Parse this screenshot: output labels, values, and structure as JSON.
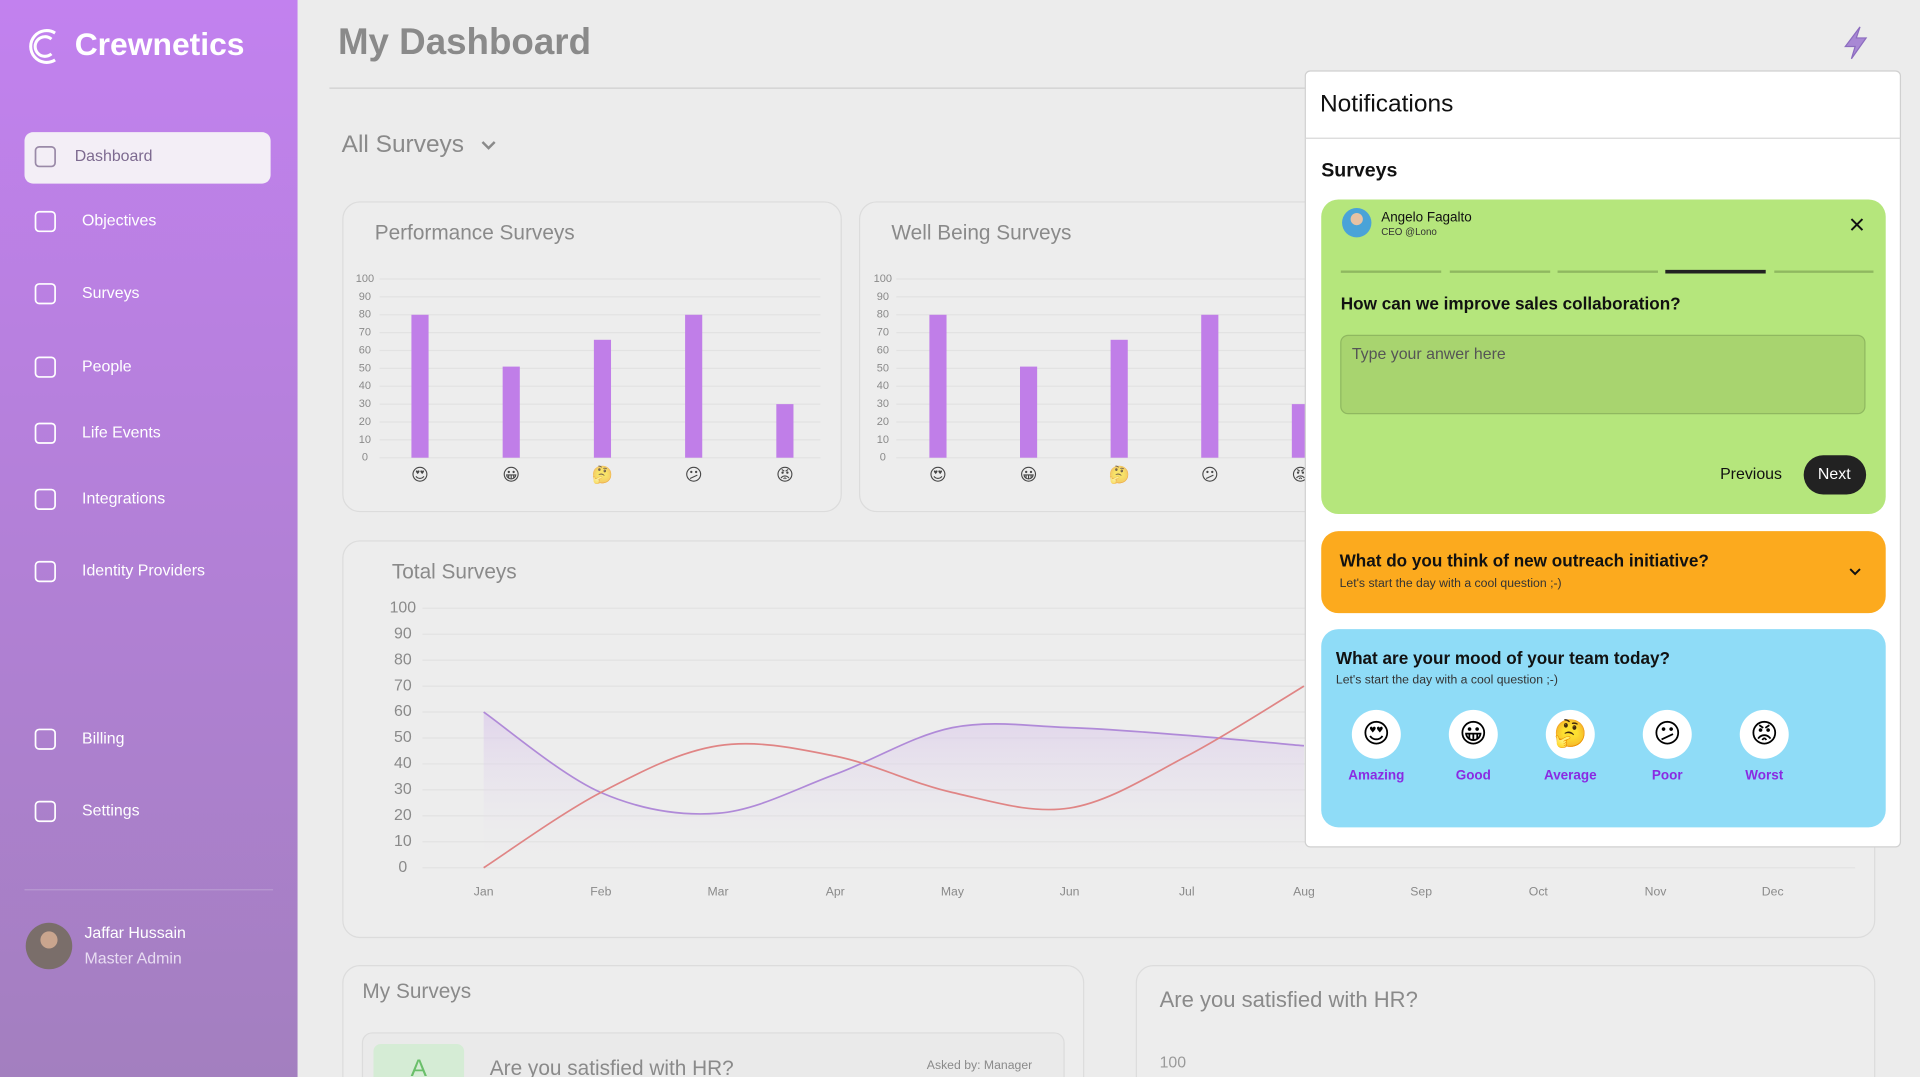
{
  "sidebar": {
    "brand": "Crewnetics",
    "nav": [
      "Dashboard",
      "Objectives",
      "Surveys",
      "People",
      "Life Events",
      "Integrations",
      "Identity Providers",
      "Billing",
      "Settings"
    ],
    "user": {
      "name": "Jaffar Hussain",
      "role": "Master Admin"
    }
  },
  "header": {
    "title": "My Dashboard",
    "filter": "All Surveys"
  },
  "chart_data": [
    {
      "type": "bar",
      "title": "Performance Surveys",
      "categories": [
        "😍",
        "😀",
        "🤔",
        "😕",
        "😡"
      ],
      "values": [
        80,
        51,
        66,
        80,
        30
      ],
      "color": "#c07ee8",
      "ylim": [
        0,
        100
      ],
      "yticks": [
        0,
        10,
        20,
        30,
        40,
        50,
        60,
        70,
        80,
        90,
        100
      ],
      "grid": true
    },
    {
      "type": "bar",
      "title": "Well Being Surveys",
      "categories": [
        "😍",
        "😀",
        "🤔",
        "😕",
        "😡"
      ],
      "values": [
        80,
        51,
        66,
        80,
        30
      ],
      "color": "#c07ee8",
      "ylim": [
        0,
        100
      ],
      "yticks": [
        0,
        10,
        20,
        30,
        40,
        50,
        60,
        70,
        80,
        90,
        100
      ],
      "grid": true
    },
    {
      "type": "line",
      "title": "Total Surveys",
      "categories": [
        "Jan",
        "Feb",
        "Mar",
        "Apr",
        "May",
        "Jun",
        "Jul",
        "Aug",
        "Sep",
        "Oct",
        "Nov",
        "Dec"
      ],
      "series": [
        {
          "color": "#b08ad8",
          "values": [
            60,
            29,
            21,
            36,
            54,
            54,
            51,
            47,
            null,
            null,
            null,
            null
          ]
        },
        {
          "color": "#e08585",
          "values": [
            0,
            29,
            47,
            43,
            29,
            23,
            43,
            70,
            null,
            null,
            null,
            null
          ]
        }
      ],
      "ylim": [
        0,
        100
      ],
      "yticks": [
        0,
        10,
        20,
        30,
        40,
        50,
        60,
        70,
        80,
        90,
        100
      ],
      "grid": true
    }
  ],
  "my_surveys": {
    "title": "My Surveys",
    "badge": "A",
    "question": "Are you satisfied with HR?",
    "asked_by": "Asked by: Manager"
  },
  "hr_card": {
    "title": "Are you satisfied with HR?",
    "tick": "100"
  },
  "notifications": {
    "title": "Notifications",
    "section": "Surveys",
    "card1": {
      "name": "Angelo Fagalto",
      "role": "CEO @Lono",
      "question": "How can we improve sales collaboration?",
      "placeholder": "Type your anwer here",
      "previous": "Previous",
      "next": "Next"
    },
    "card2": {
      "question": "What do you think of new outreach initiative?",
      "sub": "Let's start the day with a cool question ;-)"
    },
    "card3": {
      "question": "What are your mood of your team today?",
      "sub": "Let's start the day with a cool question ;-)",
      "moods": [
        {
          "emoji": "😍",
          "label": "Amazing"
        },
        {
          "emoji": "😀",
          "label": "Good"
        },
        {
          "emoji": "🤔",
          "label": "Average"
        },
        {
          "emoji": "😕",
          "label": "Poor"
        },
        {
          "emoji": "😡",
          "label": "Worst"
        }
      ]
    }
  }
}
